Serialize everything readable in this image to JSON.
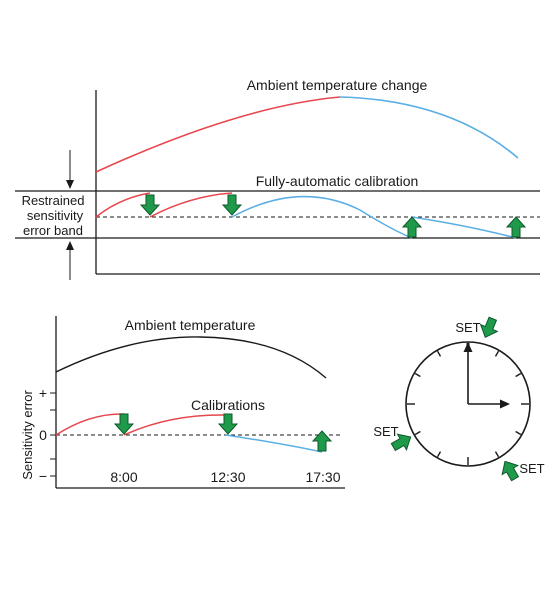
{
  "top_panel": {
    "title": "Ambient temperature change",
    "calibration_label": "Fully-automatic calibration",
    "band_label_lines": [
      "Restrained",
      "sensitivity",
      "error band"
    ]
  },
  "bottom_panel": {
    "title": "Ambient temperature",
    "calibration_label": "Calibrations",
    "y_axis_label": "Sensitivity error",
    "y_ticks": [
      "+",
      "0",
      "−"
    ],
    "x_ticks": [
      "8:00",
      "12:30",
      "17:30"
    ]
  },
  "clock": {
    "set_labels": [
      "SET",
      "SET",
      "SET"
    ]
  },
  "colors": {
    "warming": "#e8474f",
    "cooling": "#5aaee3",
    "arrow_fill": "#1f9a4a",
    "arrow_stroke": "#0e5a2a",
    "line": "#1a1a1a"
  },
  "icons": {
    "down_arrow": "down-arrow-icon",
    "up_arrow": "up-arrow-icon",
    "clock": "clock-icon"
  }
}
